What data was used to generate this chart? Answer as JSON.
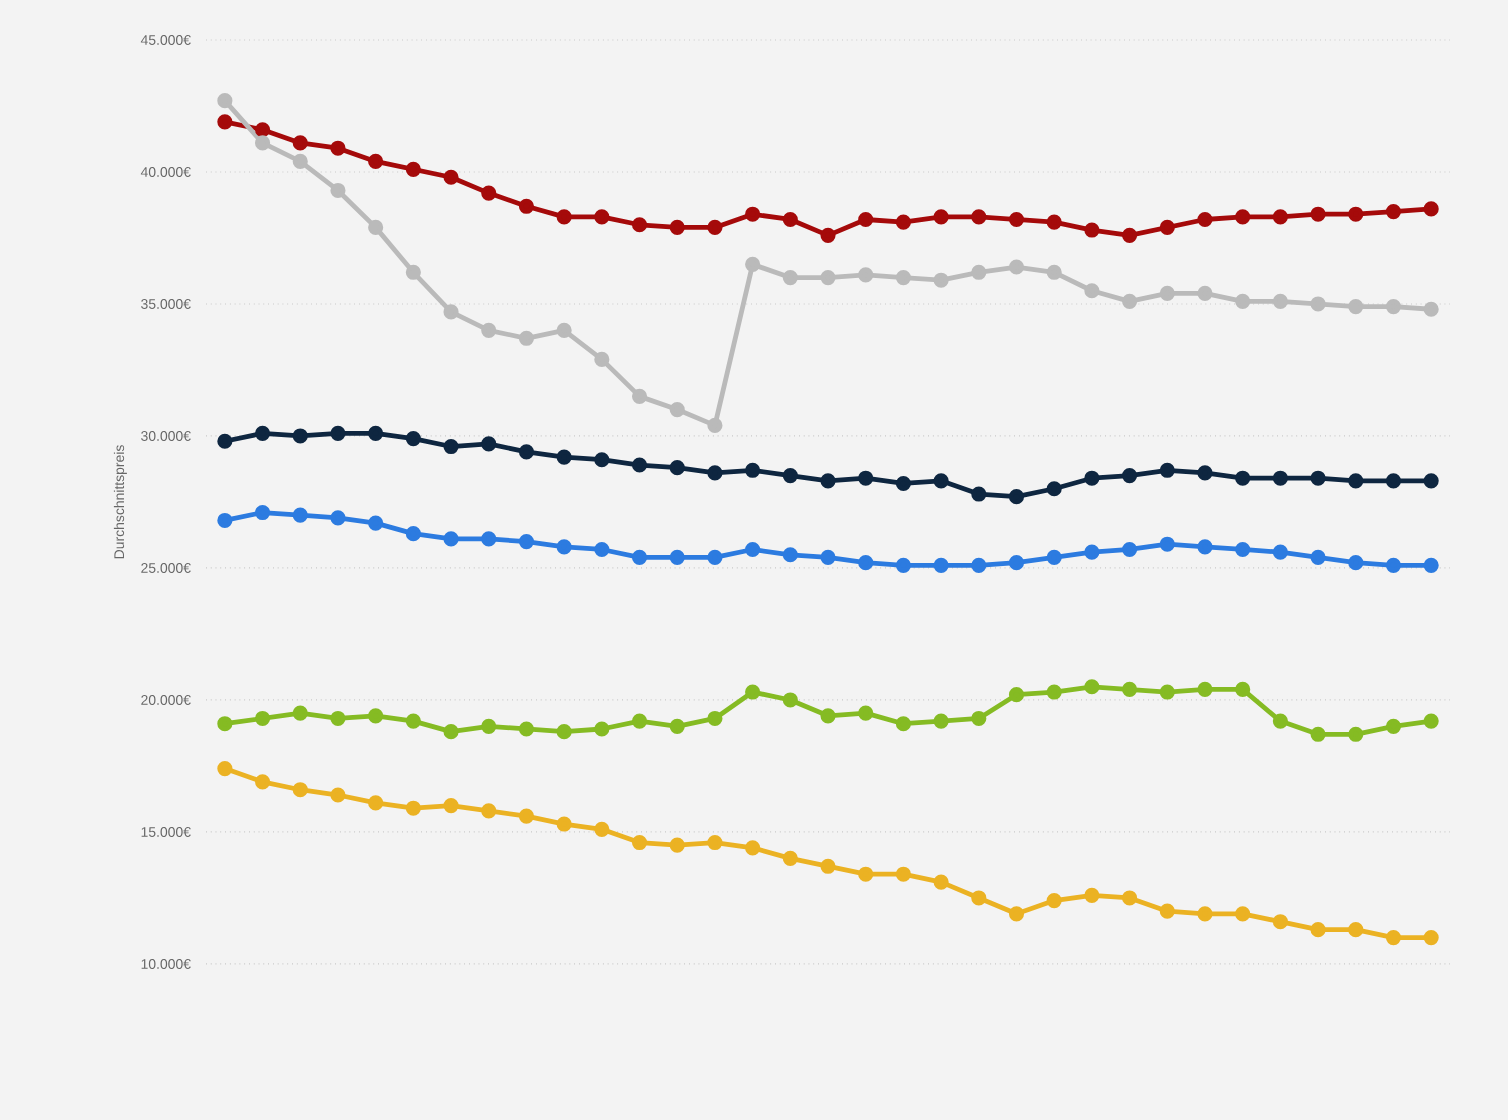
{
  "chart_data": {
    "type": "line",
    "ylabel": "Durchschnittspreis",
    "categories": [
      null,
      null,
      null,
      null,
      null,
      null,
      null,
      null,
      null,
      null,
      null,
      null,
      null,
      null,
      null,
      null,
      null,
      null,
      null,
      null,
      null,
      null,
      null,
      null,
      null,
      null,
      null,
      null,
      null,
      null,
      null,
      null,
      null
    ],
    "series": [
      {
        "color": "#a50a0a",
        "values": [
          41900,
          41600,
          41100,
          40900,
          40400,
          40100,
          39800,
          39200,
          38700,
          38300,
          38300,
          38000,
          37900,
          37900,
          38400,
          38200,
          37600,
          38200,
          38100,
          38300,
          38300,
          38200,
          38100,
          37800,
          37600,
          37900,
          38200,
          38300,
          38300,
          38400,
          38400,
          38500,
          38600
        ]
      },
      {
        "color": "#bababa",
        "values": [
          42700,
          41100,
          40400,
          39300,
          37900,
          36200,
          34700,
          34000,
          33700,
          34000,
          32900,
          31500,
          31000,
          30400,
          36500,
          36000,
          36000,
          36100,
          36000,
          35900,
          36200,
          36400,
          36200,
          35500,
          35100,
          35400,
          35400,
          35100,
          35100,
          35000,
          34900,
          34900,
          34800
        ]
      },
      {
        "color": "#0e2640",
        "values": [
          29800,
          30100,
          30000,
          30100,
          30100,
          29900,
          29600,
          29700,
          29400,
          29200,
          29100,
          28900,
          28800,
          28600,
          28700,
          28500,
          28300,
          28400,
          28200,
          28300,
          27800,
          27700,
          28000,
          28400,
          28500,
          28700,
          28600,
          28400,
          28400,
          28400,
          28300,
          28300,
          28300
        ]
      },
      {
        "color": "#2c7be0",
        "values": [
          26800,
          27100,
          27000,
          26900,
          26700,
          26300,
          26100,
          26100,
          26000,
          25800,
          25700,
          25400,
          25400,
          25400,
          25700,
          25500,
          25400,
          25200,
          25100,
          25100,
          25100,
          25200,
          25400,
          25600,
          25700,
          25900,
          25800,
          25700,
          25600,
          25400,
          25200,
          25100,
          25100
        ]
      },
      {
        "color": "#85bb23",
        "values": [
          19100,
          19300,
          19500,
          19300,
          19400,
          19200,
          18800,
          19000,
          18900,
          18800,
          18900,
          19200,
          19000,
          19300,
          20300,
          20000,
          19400,
          19500,
          19100,
          19200,
          19300,
          20200,
          20300,
          20500,
          20400,
          20300,
          20400,
          20400,
          19200,
          18700,
          18700,
          19000,
          19200
        ]
      },
      {
        "color": "#ebb223",
        "values": [
          17400,
          16900,
          16600,
          16400,
          16100,
          15900,
          16000,
          15800,
          15600,
          15300,
          15100,
          14600,
          14500,
          14600,
          14400,
          14000,
          13700,
          13400,
          13400,
          13100,
          12500,
          11900,
          12400,
          12600,
          12500,
          12000,
          11900,
          11900,
          11600,
          11300,
          11300,
          11000,
          11000
        ]
      }
    ],
    "ylim": [
      10000,
      45000
    ],
    "yticks": [
      {
        "value": 10000,
        "label": "10.000€"
      },
      {
        "value": 15000,
        "label": "15.000€"
      },
      {
        "value": 20000,
        "label": "20.000€"
      },
      {
        "value": 25000,
        "label": "25.000€"
      },
      {
        "value": 30000,
        "label": "30.000€"
      },
      {
        "value": 35000,
        "label": "35.000€"
      },
      {
        "value": 40000,
        "label": "40.000€"
      },
      {
        "value": 45000,
        "label": "45.000€"
      }
    ],
    "grid": "y",
    "marker": "circle"
  }
}
